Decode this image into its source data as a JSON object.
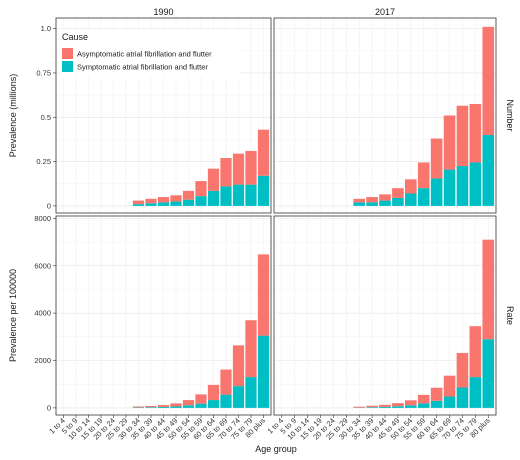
{
  "chart_data": {
    "type": "bar",
    "stacked": true,
    "facet_columns": [
      "1990",
      "2017"
    ],
    "facet_rows": [
      "Number",
      "Rate"
    ],
    "categories": [
      "1 to 4",
      "5 to 9",
      "10 to 14",
      "15 to 19",
      "20 to 24",
      "25 to 29",
      "30 to 34",
      "35 to 39",
      "40 to 44",
      "45 to 49",
      "50 to 54",
      "55 to 59",
      "60 to 64",
      "65 to 69",
      "70 to 74",
      "75 to 79",
      "80 plus"
    ],
    "xlabel": "Age group",
    "legend": {
      "title": "Cause",
      "position": "top-left inside",
      "entries": [
        "Asymptomatic atrial fibrillation and flutter",
        "Symptomatic atrial fibrillation and flutter"
      ]
    },
    "colors": {
      "Asymptomatic atrial fibrillation and flutter": "#f8766d",
      "Symptomatic atrial fibrillation and flutter": "#00bfc4"
    },
    "grid": true,
    "panels": [
      {
        "row": "Number",
        "ylabel": "Prevalence (millions)",
        "ylim": [
          -0.04,
          1.06
        ],
        "yticks": [
          0,
          0.25,
          0.5,
          0.75,
          1.0
        ],
        "ytick_labels": [
          "0",
          "0.25",
          "0.5",
          "0.75",
          "1.0"
        ],
        "columns": {
          "1990": {
            "symptomatic": [
              0,
              0,
              0,
              0,
              0,
              0,
              0.01,
              0.015,
              0.02,
              0.025,
              0.035,
              0.055,
              0.085,
              0.11,
              0.12,
              0.12,
              0.17
            ],
            "asymptomatic": [
              0,
              0,
              0,
              0,
              0,
              0,
              0.02,
              0.025,
              0.03,
              0.035,
              0.05,
              0.085,
              0.125,
              0.16,
              0.175,
              0.19,
              0.26
            ]
          },
          "2017": {
            "symptomatic": [
              0,
              0,
              0,
              0,
              0,
              0,
              0.02,
              0.02,
              0.03,
              0.045,
              0.07,
              0.1,
              0.155,
              0.205,
              0.225,
              0.245,
              0.4
            ],
            "asymptomatic": [
              0,
              0,
              0,
              0,
              0,
              0,
              0.02,
              0.03,
              0.035,
              0.055,
              0.08,
              0.145,
              0.225,
              0.305,
              0.34,
              0.33,
              0.61
            ]
          }
        }
      },
      {
        "row": "Rate",
        "ylabel": "Prevalence per 100000",
        "ylim": [
          -300,
          8100
        ],
        "yticks": [
          0,
          2000,
          4000,
          6000,
          8000
        ],
        "ytick_labels": [
          "0",
          "2000",
          "4000",
          "6000",
          "8000"
        ],
        "columns": {
          "1990": {
            "symptomatic": [
              0,
              0,
              0,
              0,
              0,
              0,
              20,
              30,
              40,
              60,
              110,
              180,
              330,
              560,
              920,
              1300,
              3050
            ],
            "asymptomatic": [
              0,
              0,
              0,
              0,
              0,
              0,
              40,
              50,
              80,
              130,
              220,
              390,
              640,
              1060,
              1720,
              2400,
              3430
            ]
          },
          "2017": {
            "symptomatic": [
              0,
              0,
              0,
              0,
              0,
              0,
              10,
              30,
              40,
              70,
              110,
              190,
              300,
              480,
              860,
              1300,
              2900
            ],
            "asymptomatic": [
              0,
              0,
              0,
              0,
              0,
              0,
              40,
              60,
              90,
              130,
              210,
              360,
              550,
              880,
              1460,
              2150,
              4200
            ]
          }
        }
      }
    ]
  }
}
